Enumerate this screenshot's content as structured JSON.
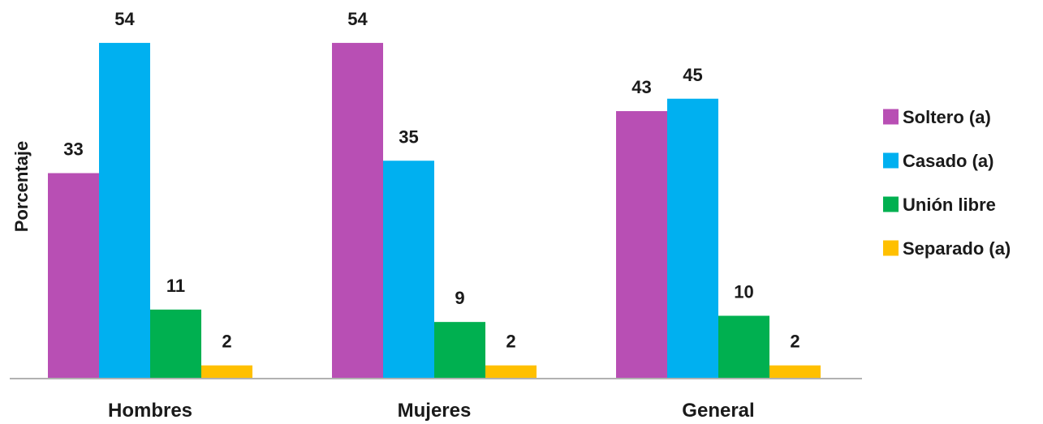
{
  "chart_data": {
    "type": "bar",
    "title": "",
    "xlabel": "",
    "ylabel": "Porcentaje",
    "categories": [
      "Hombres",
      "Mujeres",
      "General"
    ],
    "series": [
      {
        "name": "Soltero (a)",
        "color": "#b84fb4",
        "values": [
          33,
          54,
          43
        ]
      },
      {
        "name": "Casado (a)",
        "color": "#00b0f0",
        "values": [
          54,
          35,
          45
        ]
      },
      {
        "name": "Unión libre",
        "color": "#00b050",
        "values": [
          11,
          9,
          10
        ]
      },
      {
        "name": "Separado (a)",
        "color": "#ffc000",
        "values": [
          2,
          2,
          2
        ]
      }
    ],
    "ylim": [
      0,
      60
    ],
    "grid": false,
    "legend_position": "right"
  }
}
